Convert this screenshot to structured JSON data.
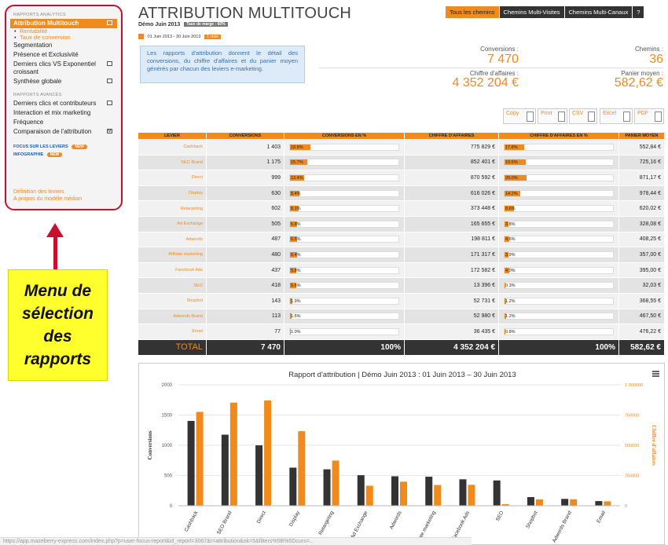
{
  "sidebar": {
    "section_analytics": "RAPPORTS ANALYTICS",
    "items_analytics": [
      {
        "label": "Attribution Multitouch",
        "active": true,
        "icon": "window-icon"
      },
      {
        "label": "Segmentation"
      },
      {
        "label": "Présence et Exclusivité"
      },
      {
        "label": "Derniers clics VS Exponentiel croissant",
        "icon": "window-icon"
      },
      {
        "label": "Synthèse globale",
        "icon": "window-icon"
      }
    ],
    "subitems": [
      "Rentabilité",
      "Taux de conversion"
    ],
    "section_advanced": "RAPPORTS AVANCÉS",
    "items_advanced": [
      {
        "label": "Derniers clics et contributeurs",
        "icon": "window-icon"
      },
      {
        "label": "Interaction et mix marketing"
      },
      {
        "label": "Fréquence"
      },
      {
        "label": "Comparaison de l'attribution",
        "icon": "m-icon"
      }
    ],
    "focus_label": "FOCUS SUR LES LEVIERS",
    "focus_badge": "NEW",
    "infographie_label": "INFOGRAPHIE",
    "infographie_badge": "NEW",
    "bottom_links": [
      "Définition des leviers",
      "A propos du modèle médian"
    ]
  },
  "annotation": {
    "text_lines": [
      "Menu de",
      "sélection",
      "des",
      "rapports"
    ]
  },
  "header": {
    "title": "ATTRIBUTION MULTITOUCH",
    "subtitle": "Démo Juin 2013",
    "margin_badge": "Taux de marge : 60%",
    "date_range": "01 Juin 2013 - 30 Juin 2013",
    "date_badge": "1 mois",
    "tabs": [
      "Tous les chemins",
      "Chemins Multi-Visites",
      "Chemins Multi-Canaux"
    ],
    "help_label": "?"
  },
  "info_text": "Les rapports d'attribution donnent le détail des conversions, du chiffre d'affaires et du panier moyen générés par chacun des leviers e-marketing.",
  "kpis": {
    "conversions_label": "Conversions :",
    "conversions_value": "7 470",
    "chemins_label": "Chemins :",
    "chemins_value": "36",
    "ca_label": "Chiffre d'affaires :",
    "ca_value": "4 352 204 €",
    "panier_label": "Panier moyen :",
    "panier_value": "582,62 €"
  },
  "exports": [
    "Copy",
    "Print",
    "CSV",
    "Excel",
    "PDF"
  ],
  "table": {
    "headers": [
      "LEVIER",
      "CONVERSIONS",
      "CONVERSIONS EN %",
      "CHIFFRE D'AFFAIRES",
      "CHIFFRE D'AFFAIRES EN %",
      "PANIER MOYEN"
    ],
    "rows": [
      {
        "levier": "Cashback",
        "conv": "1 403",
        "conv_pct": "18.8%",
        "conv_frac": 0.188,
        "ca": "775 829 €",
        "ca_pct": "17.8%",
        "ca_frac": 0.178,
        "panier": "552,84 €"
      },
      {
        "levier": "SEO Brand",
        "conv": "1 175",
        "conv_pct": "15.7%",
        "conv_frac": 0.157,
        "ca": "852 401 €",
        "ca_pct": "19.6%",
        "ca_frac": 0.196,
        "panier": "725,16 €"
      },
      {
        "levier": "Direct",
        "conv": "999",
        "conv_pct": "13.4%",
        "conv_frac": 0.134,
        "ca": "870 592 €",
        "ca_pct": "20.0%",
        "ca_frac": 0.2,
        "panier": "871,17 €"
      },
      {
        "levier": "Display",
        "conv": "630",
        "conv_pct": "8.4%",
        "conv_frac": 0.084,
        "ca": "616 026 €",
        "ca_pct": "14.2%",
        "ca_frac": 0.142,
        "panier": "978,44 €"
      },
      {
        "levier": "Retargeting",
        "conv": "602",
        "conv_pct": "8.1%",
        "conv_frac": 0.081,
        "ca": "373 448 €",
        "ca_pct": "8.6%",
        "ca_frac": 0.086,
        "panier": "620,02 €"
      },
      {
        "levier": "Ad Exchange",
        "conv": "505",
        "conv_pct": "6.8%",
        "conv_frac": 0.068,
        "ca": "165 655 €",
        "ca_pct": "3.8%",
        "ca_frac": 0.038,
        "panier": "328,08 €"
      },
      {
        "levier": "Adwords",
        "conv": "487",
        "conv_pct": "6.5%",
        "conv_frac": 0.065,
        "ca": "198 811 €",
        "ca_pct": "4.6%",
        "ca_frac": 0.046,
        "panier": "408,25 €"
      },
      {
        "levier": "Affiliate marketing",
        "conv": "480",
        "conv_pct": "6.4%",
        "conv_frac": 0.064,
        "ca": "171 317 €",
        "ca_pct": "3.9%",
        "ca_frac": 0.039,
        "panier": "357,00 €"
      },
      {
        "levier": "Facebook Ads",
        "conv": "437",
        "conv_pct": "5.8%",
        "conv_frac": 0.058,
        "ca": "172 582 €",
        "ca_pct": "4.0%",
        "ca_frac": 0.04,
        "panier": "395,00 €"
      },
      {
        "levier": "SEO",
        "conv": "418",
        "conv_pct": "5.6%",
        "conv_frac": 0.056,
        "ca": "13 396 €",
        "ca_pct": "0.3%",
        "ca_frac": 0.003,
        "panier": "32,03 €"
      },
      {
        "levier": "Shopbot",
        "conv": "143",
        "conv_pct": "1.9%",
        "conv_frac": 0.019,
        "ca": "52 731 €",
        "ca_pct": "1.2%",
        "ca_frac": 0.012,
        "panier": "368,55 €"
      },
      {
        "levier": "Adwords Brand",
        "conv": "113",
        "conv_pct": "1.5%",
        "conv_frac": 0.015,
        "ca": "52 980 €",
        "ca_pct": "1.2%",
        "ca_frac": 0.012,
        "panier": "467,50 €"
      },
      {
        "levier": "Email",
        "conv": "77",
        "conv_pct": "1.0%",
        "conv_frac": 0.01,
        "ca": "36 435 €",
        "ca_pct": "0.8%",
        "ca_frac": 0.008,
        "panier": "476,22 €"
      }
    ],
    "total": {
      "label": "TOTAL",
      "conv": "7 470",
      "conv_pct": "100%",
      "ca": "4 352 204 €",
      "ca_pct": "100%",
      "panier": "582,62 €"
    }
  },
  "chart_data": {
    "type": "bar",
    "title": "Rapport d'attribution | Démo Juin 2013 : 01 Juin 2013 – 30 Juin 2013",
    "categories": [
      "Cashback",
      "SEO Brand",
      "Direct",
      "Display",
      "Retargeting",
      "Ad Exchange",
      "Adwords",
      "Affiliate marketing",
      "Facebook Ads",
      "SEO",
      "Shopbot",
      "Adwords Brand",
      "Email"
    ],
    "series": [
      {
        "name": "Conversions",
        "axis": "left",
        "color": "#333333",
        "values": [
          1403,
          1175,
          999,
          630,
          602,
          505,
          487,
          480,
          437,
          418,
          143,
          113,
          77
        ]
      },
      {
        "name": "Chiffre d'affaires",
        "axis": "right",
        "color": "#f08a1c",
        "values": [
          775829,
          852401,
          870592,
          616026,
          373448,
          165655,
          198811,
          171317,
          172582,
          13396,
          52731,
          52980,
          36435
        ]
      }
    ],
    "ylabel": "Conversions",
    "y2label": "Chiffre d'affaires",
    "ylim": [
      0,
      2000
    ],
    "y2lim": [
      0,
      1000000
    ],
    "yticks": [
      "0",
      "500",
      "1000",
      "1500",
      "2000"
    ],
    "y2ticks": [
      "0",
      "250000",
      "500000",
      "750000",
      "1 000000"
    ],
    "grid": true
  },
  "url_text": "https://app.mazeberry-express.com/index.php?p=user-focus-report&id_report=3067&r=attribution&ok=5&filters%5B%5Dcurs=..."
}
